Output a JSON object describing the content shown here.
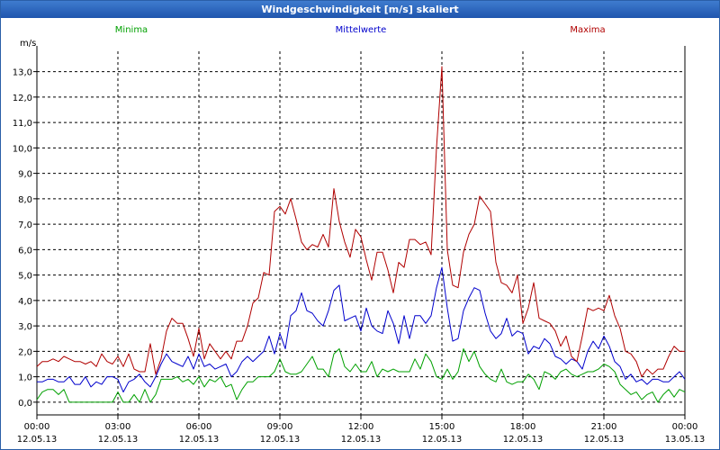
{
  "window": {
    "title": "Windgeschwindigkeit [m/s] skaliert"
  },
  "chart_data": {
    "type": "line",
    "title": "Windgeschwindigkeit [m/s] skaliert",
    "ylabel": "m/s",
    "xlabel": "",
    "ylim": [
      -0.5,
      13.8
    ],
    "xlim": [
      0,
      24
    ],
    "grid": true,
    "y_ticks": [
      "0,0",
      "1,0",
      "2,0",
      "3,0",
      "4,0",
      "5,0",
      "6,0",
      "7,0",
      "8,0",
      "9,0",
      "10,0",
      "11,0",
      "12,0",
      "13,0"
    ],
    "x_ticks": [
      {
        "time": "00:00",
        "date": "12.05.13"
      },
      {
        "time": "03:00",
        "date": "12.05.13"
      },
      {
        "time": "06:00",
        "date": "12.05.13"
      },
      {
        "time": "09:00",
        "date": "12.05.13"
      },
      {
        "time": "12:00",
        "date": "12.05.13"
      },
      {
        "time": "15:00",
        "date": "12.05.13"
      },
      {
        "time": "18:00",
        "date": "12.05.13"
      },
      {
        "time": "21:00",
        "date": "12.05.13"
      },
      {
        "time": "00:00",
        "date": "13.05.13"
      }
    ],
    "x_hours": [
      0,
      0.2,
      0.4,
      0.6,
      0.8,
      1,
      1.2,
      1.4,
      1.6,
      1.8,
      2,
      2.2,
      2.4,
      2.6,
      2.8,
      3,
      3.2,
      3.4,
      3.6,
      3.8,
      4,
      4.2,
      4.4,
      4.6,
      4.8,
      5,
      5.2,
      5.4,
      5.6,
      5.8,
      6,
      6.2,
      6.4,
      6.6,
      6.8,
      7,
      7.2,
      7.4,
      7.6,
      7.8,
      8,
      8.2,
      8.4,
      8.6,
      8.8,
      9,
      9.2,
      9.4,
      9.6,
      9.8,
      10,
      10.2,
      10.4,
      10.6,
      10.8,
      11,
      11.2,
      11.4,
      11.6,
      11.8,
      12,
      12.2,
      12.4,
      12.6,
      12.8,
      13,
      13.2,
      13.4,
      13.6,
      13.8,
      14,
      14.2,
      14.4,
      14.6,
      14.8,
      15,
      15.2,
      15.4,
      15.6,
      15.8,
      16,
      16.2,
      16.4,
      16.6,
      16.8,
      17,
      17.2,
      17.4,
      17.6,
      17.8,
      18,
      18.2,
      18.4,
      18.6,
      18.8,
      19,
      19.2,
      19.4,
      19.6,
      19.8,
      20,
      20.2,
      20.4,
      20.6,
      20.8,
      21,
      21.2,
      21.4,
      21.6,
      21.8,
      22,
      22.2,
      22.4,
      22.6,
      22.8,
      23,
      23.2,
      23.4,
      23.6,
      23.8,
      24
    ],
    "legend": [
      {
        "name": "Minima",
        "color": "#00a000",
        "pos": "left"
      },
      {
        "name": "Mittelwerte",
        "color": "#0000cc",
        "pos": "center"
      },
      {
        "name": "Maxima",
        "color": "#b00000",
        "pos": "right"
      }
    ],
    "series": [
      {
        "name": "Minima",
        "color": "#00a000",
        "values": [
          0.1,
          0.4,
          0.5,
          0.5,
          0.3,
          0.5,
          0.0,
          0.0,
          0.0,
          0.0,
          0.0,
          0.0,
          0.0,
          0.0,
          0.0,
          0.4,
          0.0,
          0.0,
          0.3,
          0.0,
          0.5,
          0.0,
          0.3,
          0.9,
          0.9,
          0.9,
          1.0,
          0.8,
          0.9,
          0.7,
          1.0,
          0.6,
          0.9,
          0.8,
          1.0,
          0.6,
          0.7,
          0.1,
          0.5,
          0.8,
          0.8,
          1.0,
          1.0,
          1.0,
          1.2,
          1.7,
          1.2,
          1.1,
          1.1,
          1.2,
          1.5,
          1.8,
          1.3,
          1.3,
          1.0,
          1.9,
          2.1,
          1.4,
          1.2,
          1.5,
          1.2,
          1.2,
          1.6,
          1.0,
          1.3,
          1.2,
          1.3,
          1.2,
          1.2,
          1.2,
          1.7,
          1.3,
          1.9,
          1.6,
          1.0,
          0.9,
          1.3,
          0.9,
          1.2,
          2.1,
          1.6,
          2.0,
          1.4,
          1.1,
          0.9,
          0.8,
          1.3,
          0.8,
          0.7,
          0.8,
          0.8,
          1.1,
          0.9,
          0.5,
          1.2,
          1.1,
          0.9,
          1.2,
          1.3,
          1.1,
          1.0,
          1.1,
          1.2,
          1.2,
          1.3,
          1.5,
          1.4,
          1.2,
          0.7,
          0.5,
          0.3,
          0.4,
          0.1,
          0.3,
          0.4,
          0.0,
          0.3,
          0.5,
          0.2,
          0.5,
          0.4
        ]
      },
      {
        "name": "Mittelwerte",
        "color": "#0000cc",
        "values": [
          0.8,
          0.8,
          0.9,
          0.9,
          0.8,
          0.8,
          1.0,
          0.7,
          0.7,
          1.0,
          0.6,
          0.8,
          0.7,
          1.0,
          1.0,
          0.9,
          0.4,
          0.8,
          0.9,
          1.1,
          0.8,
          0.6,
          1.0,
          1.5,
          1.9,
          1.6,
          1.5,
          1.4,
          1.8,
          1.3,
          1.9,
          1.4,
          1.5,
          1.3,
          1.4,
          1.5,
          1.0,
          1.2,
          1.6,
          1.8,
          1.6,
          1.8,
          2.0,
          2.6,
          1.9,
          2.7,
          2.1,
          3.4,
          3.6,
          4.3,
          3.6,
          3.5,
          3.2,
          3.0,
          3.6,
          4.4,
          4.6,
          3.2,
          3.3,
          3.4,
          2.8,
          3.7,
          3.0,
          2.8,
          2.7,
          3.6,
          3.1,
          2.3,
          3.4,
          2.5,
          3.4,
          3.4,
          3.1,
          3.4,
          4.5,
          5.3,
          3.7,
          2.4,
          2.5,
          3.6,
          4.1,
          4.5,
          4.4,
          3.5,
          2.8,
          2.5,
          2.7,
          3.3,
          2.6,
          2.8,
          2.7,
          1.9,
          2.2,
          2.1,
          2.5,
          2.3,
          1.8,
          1.7,
          1.5,
          1.7,
          1.6,
          1.3,
          2.0,
          2.4,
          2.1,
          2.6,
          2.2,
          1.6,
          1.4,
          0.9,
          1.1,
          0.8,
          0.9,
          0.7,
          0.9,
          0.9,
          0.8,
          0.8,
          1.0,
          1.2,
          0.9
        ]
      },
      {
        "name": "Maxima",
        "color": "#b00000",
        "values": [
          1.4,
          1.6,
          1.6,
          1.7,
          1.6,
          1.8,
          1.7,
          1.6,
          1.6,
          1.5,
          1.6,
          1.4,
          1.9,
          1.6,
          1.5,
          1.8,
          1.4,
          1.9,
          1.3,
          1.2,
          1.2,
          2.3,
          1.1,
          1.7,
          2.8,
          3.3,
          3.1,
          3.1,
          2.5,
          1.8,
          2.9,
          1.7,
          2.3,
          2.0,
          1.7,
          2.0,
          1.7,
          2.4,
          2.4,
          3.0,
          3.9,
          4.1,
          5.1,
          5.0,
          7.5,
          7.7,
          7.4,
          8.0,
          7.2,
          6.3,
          6.0,
          6.2,
          6.1,
          6.6,
          6.1,
          8.4,
          7.1,
          6.3,
          5.7,
          6.8,
          6.5,
          5.6,
          4.8,
          5.9,
          5.9,
          5.2,
          4.3,
          5.5,
          5.3,
          6.4,
          6.4,
          6.2,
          6.3,
          5.8,
          10.0,
          13.2,
          6.0,
          4.6,
          4.5,
          5.9,
          6.6,
          7.0,
          8.1,
          7.8,
          7.5,
          5.5,
          4.7,
          4.6,
          4.3,
          5.0,
          3.1,
          3.7,
          4.7,
          3.3,
          3.2,
          3.1,
          2.8,
          2.2,
          2.6,
          1.8,
          1.6,
          2.6,
          3.7,
          3.6,
          3.7,
          3.6,
          4.2,
          3.4,
          2.9,
          2.0,
          1.9,
          1.6,
          1.0,
          1.3,
          1.1,
          1.3,
          1.3,
          1.8,
          2.2,
          2.0,
          2.0
        ]
      }
    ]
  }
}
